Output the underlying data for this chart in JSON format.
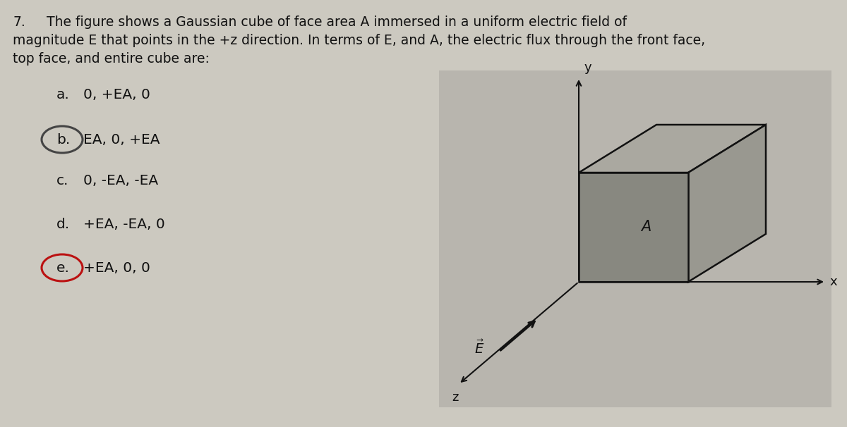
{
  "background_color": "#ccc9c0",
  "question_number": "7.",
  "q_line1": "        The figure shows a Gaussian cube of face area A immersed in a uniform electric field of",
  "q_line2": "magnitude E that points in the +z direction. In terms of E, and A, the electric flux through the front face,",
  "q_line3": "top face, and entire cube are:",
  "choices": [
    {
      "label": "a.",
      "text": "0, +EA, 0",
      "circled": false
    },
    {
      "label": "b.",
      "text": "EA, 0, +EA",
      "circled": true,
      "circle_color": "#444444"
    },
    {
      "label": "c.",
      "text": "0, -EA, -EA",
      "circled": false
    },
    {
      "label": "d.",
      "text": "+EA, -EA, 0",
      "circled": false
    },
    {
      "label": "e.",
      "text": "+EA, 0, 0",
      "circled": true,
      "circle_color": "#bb1111"
    }
  ],
  "diagram_bg": "#b8b5ae",
  "cube_face_color": "#888880",
  "cube_top_color": "#b0ae a8",
  "cube_right_color": "#999990",
  "cube_edge_color": "#111111",
  "axis_color": "#111111",
  "text_color": "#111111",
  "title_fontsize": 13.5,
  "choice_fontsize": 14.5
}
